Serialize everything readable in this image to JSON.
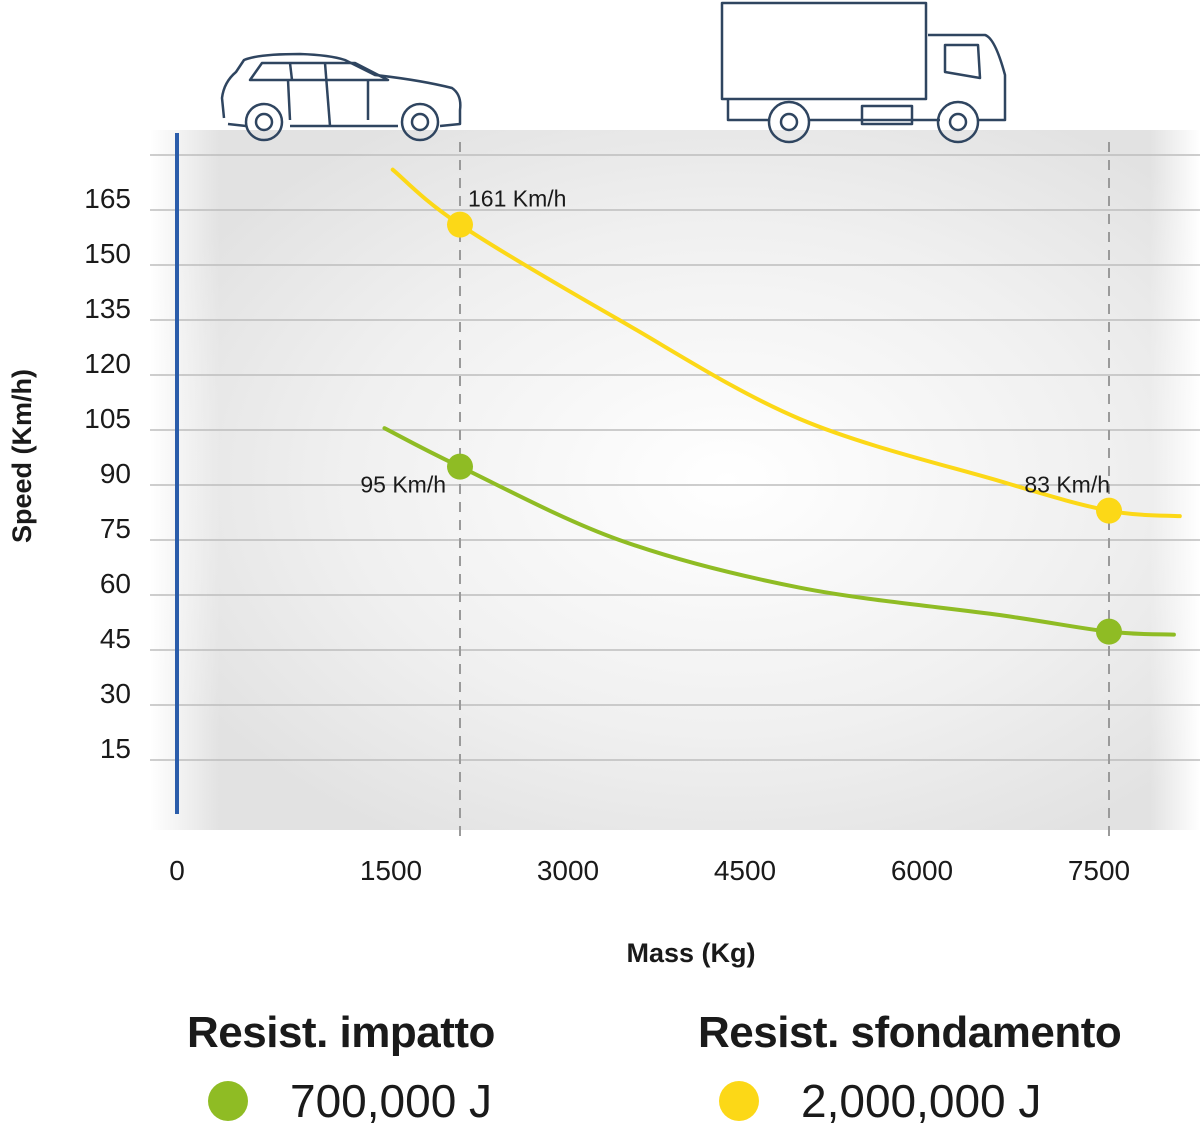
{
  "chart_data": {
    "type": "line",
    "xlabel": "Mass (Kg)",
    "ylabel": "Speed (Km/h)",
    "xlim": [
      0,
      8100
    ],
    "ylim": [
      0,
      180
    ],
    "x_ticks": [
      0,
      1500,
      3000,
      4500,
      6000,
      7500
    ],
    "y_ticks": [
      15,
      30,
      45,
      60,
      75,
      90,
      105,
      120,
      135,
      150,
      165
    ],
    "grid": true,
    "reference_lines_x": [
      2000,
      7500
    ],
    "series": [
      {
        "name": "Resist. sfondamento",
        "energy": "2,000,000 J",
        "color": "#FCD817",
        "x": [
          1430,
          2000,
          3350,
          4880,
          6580,
          7500,
          8100
        ],
        "y": [
          176,
          161,
          135,
          108,
          91,
          83,
          81.5
        ],
        "markers": [
          {
            "x": 2000,
            "y": 161,
            "label": "161 Km/h"
          },
          {
            "x": 7500,
            "y": 83,
            "label": "83 Km/h"
          }
        ]
      },
      {
        "name": "Resist. impatto",
        "energy": "700,000 J",
        "color": "#8FBC24",
        "x": [
          1360,
          2000,
          3350,
          4880,
          6580,
          7500,
          8050
        ],
        "y": [
          105.5,
          95,
          75,
          62,
          54.5,
          50,
          49.2
        ],
        "markers": [
          {
            "x": 2000,
            "y": 95,
            "label": "95 Km/h"
          },
          {
            "x": 7500,
            "y": 50,
            "label": ""
          }
        ]
      }
    ],
    "legend_placement": "bottom",
    "icons": [
      "car-icon",
      "truck-icon"
    ],
    "axis_color": "#2A5CAA"
  },
  "legend": {
    "items": [
      {
        "title": "Resist. impatto",
        "value": "700,000 J",
        "color": "#8FBC24"
      },
      {
        "title": "Resist. sfondamento",
        "value": "2,000,000 J",
        "color": "#FCD817"
      }
    ]
  }
}
